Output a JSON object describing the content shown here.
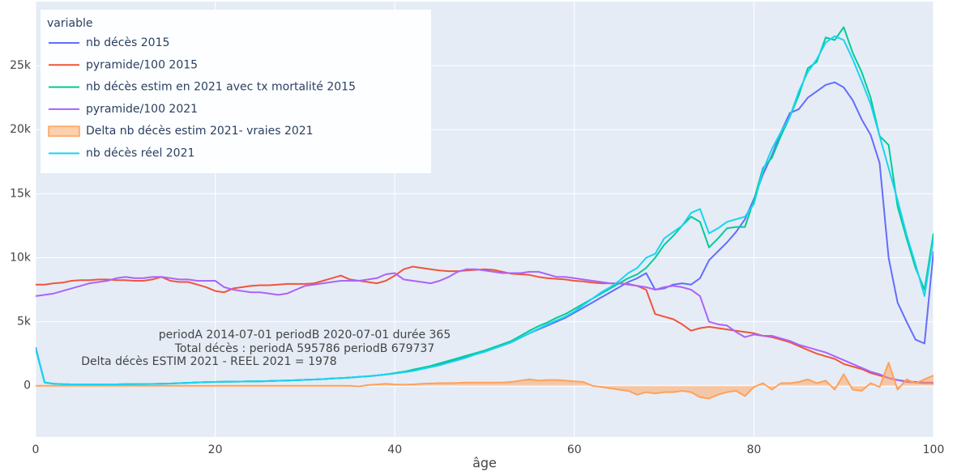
{
  "chart_data": {
    "type": "line",
    "x": [
      0,
      1,
      2,
      3,
      4,
      5,
      6,
      7,
      8,
      9,
      10,
      11,
      12,
      13,
      14,
      15,
      16,
      17,
      18,
      19,
      20,
      21,
      22,
      23,
      24,
      25,
      26,
      27,
      28,
      29,
      30,
      31,
      32,
      33,
      34,
      35,
      36,
      37,
      38,
      39,
      40,
      41,
      42,
      43,
      44,
      45,
      46,
      47,
      48,
      49,
      50,
      51,
      52,
      53,
      54,
      55,
      56,
      57,
      58,
      59,
      60,
      61,
      62,
      63,
      64,
      65,
      66,
      67,
      68,
      69,
      70,
      71,
      72,
      73,
      74,
      75,
      76,
      77,
      78,
      79,
      80,
      81,
      82,
      83,
      84,
      85,
      86,
      87,
      88,
      89,
      90,
      91,
      92,
      93,
      94,
      95,
      96,
      97,
      98,
      99,
      100
    ],
    "xlabel": "âge",
    "legend_title": "variable",
    "xlim": [
      0,
      100
    ],
    "xticks": [
      0,
      20,
      40,
      60,
      80,
      100
    ],
    "ylim": [
      -4000,
      30000
    ],
    "yticks": [
      0,
      {
        "value": 5000,
        "label": "5k"
      },
      {
        "value": 10000,
        "label": "10k"
      },
      {
        "value": 15000,
        "label": "15k"
      },
      {
        "value": 20000,
        "label": "20k"
      },
      {
        "value": 25000,
        "label": "25k"
      }
    ],
    "grid": true,
    "legend": "upper left",
    "annotations": [
      "periodA 2014-07-01 periodB 2020-07-01 durée 365",
      "Total décès : periodA 595786 periodB 679737",
      "Delta décès ESTIM 2021 - REEL 2021 = 1978"
    ],
    "series": [
      {
        "name": "nb décès 2015",
        "color": "#636efa",
        "values": [
          3000,
          250,
          150,
          120,
          110,
          100,
          100,
          100,
          110,
          110,
          120,
          120,
          130,
          140,
          150,
          170,
          200,
          230,
          260,
          280,
          300,
          310,
          320,
          330,
          340,
          350,
          370,
          390,
          410,
          430,
          460,
          490,
          520,
          560,
          600,
          640,
          690,
          740,
          800,
          880,
          970,
          1080,
          1200,
          1350,
          1500,
          1650,
          1850,
          2050,
          2250,
          2450,
          2650,
          2900,
          3150,
          3400,
          3750,
          4100,
          4400,
          4700,
          5000,
          5300,
          5700,
          6100,
          6500,
          6900,
          7300,
          7700,
          8100,
          8400,
          8800,
          7500,
          7600,
          7900,
          8000,
          7900,
          8400,
          9800,
          10500,
          11200,
          12000,
          13000,
          14600,
          16500,
          18000,
          19800,
          21300,
          21600,
          22500,
          23000,
          23500,
          23700,
          23300,
          22300,
          20800,
          19600,
          17400,
          10000,
          6500,
          5000,
          3600,
          3300,
          10500
        ]
      },
      {
        "name": "pyramide/100 2015",
        "color": "#ef553b",
        "values": [
          7900,
          7900,
          8000,
          8050,
          8200,
          8250,
          8250,
          8300,
          8300,
          8250,
          8250,
          8200,
          8200,
          8300,
          8500,
          8200,
          8100,
          8100,
          7900,
          7700,
          7400,
          7300,
          7600,
          7700,
          7800,
          7850,
          7850,
          7900,
          7950,
          7950,
          7950,
          8000,
          8200,
          8400,
          8600,
          8300,
          8200,
          8100,
          8000,
          8200,
          8600,
          9100,
          9300,
          9200,
          9100,
          9000,
          8950,
          8950,
          9000,
          9050,
          9100,
          9050,
          8900,
          8750,
          8700,
          8650,
          8500,
          8400,
          8350,
          8300,
          8200,
          8150,
          8050,
          8000,
          8000,
          8000,
          7950,
          7800,
          7500,
          5600,
          5400,
          5200,
          4800,
          4300,
          4500,
          4600,
          4500,
          4400,
          4300,
          4200,
          4100,
          3900,
          3800,
          3600,
          3400,
          3100,
          2800,
          2500,
          2300,
          2100,
          1700,
          1500,
          1300,
          1000,
          800,
          600,
          450,
          350,
          300,
          250,
          250
        ]
      },
      {
        "name": "nb décès estim en 2021 avec tx mortalité 2015",
        "color": "#00cc96",
        "values": [
          2900,
          260,
          150,
          120,
          110,
          100,
          100,
          100,
          110,
          110,
          120,
          120,
          130,
          140,
          150,
          170,
          200,
          230,
          260,
          280,
          300,
          310,
          320,
          330,
          340,
          350,
          370,
          390,
          410,
          430,
          460,
          490,
          520,
          560,
          600,
          640,
          690,
          740,
          800,
          880,
          990,
          1100,
          1250,
          1400,
          1550,
          1750,
          1950,
          2150,
          2350,
          2550,
          2750,
          3000,
          3250,
          3500,
          3900,
          4300,
          4650,
          4950,
          5300,
          5600,
          6000,
          6400,
          6800,
          7200,
          7600,
          8000,
          8400,
          8700,
          9200,
          10000,
          11000,
          11700,
          12500,
          13200,
          12800,
          10800,
          11500,
          12300,
          12400,
          12400,
          14500,
          17000,
          17800,
          19500,
          21000,
          22700,
          24800,
          25300,
          27200,
          27000,
          28000,
          26000,
          24500,
          22500,
          19500,
          18800,
          14000,
          11500,
          9200,
          7500,
          11900
        ]
      },
      {
        "name": "pyramide/100 2021",
        "color": "#ab63fa",
        "values": [
          7000,
          7100,
          7200,
          7400,
          7600,
          7800,
          8000,
          8100,
          8200,
          8400,
          8500,
          8400,
          8400,
          8500,
          8500,
          8400,
          8300,
          8300,
          8200,
          8200,
          8200,
          7700,
          7500,
          7400,
          7300,
          7300,
          7200,
          7100,
          7200,
          7500,
          7800,
          7900,
          8000,
          8100,
          8200,
          8200,
          8200,
          8300,
          8400,
          8700,
          8800,
          8300,
          8200,
          8100,
          8000,
          8200,
          8500,
          8900,
          9100,
          9100,
          9000,
          8900,
          8800,
          8800,
          8800,
          8900,
          8900,
          8700,
          8500,
          8500,
          8400,
          8300,
          8200,
          8100,
          8000,
          8000,
          7900,
          7800,
          7700,
          7500,
          7700,
          7800,
          7700,
          7500,
          7000,
          5000,
          4800,
          4700,
          4200,
          3800,
          4000,
          3900,
          3900,
          3700,
          3500,
          3200,
          3000,
          2800,
          2600,
          2300,
          2000,
          1700,
          1400,
          1100,
          900,
          600,
          450,
          300,
          250,
          200,
          200
        ]
      },
      {
        "name": "Delta nb décès estim 2021- vraies 2021",
        "color": "#FFA15A",
        "fill": "tozeroy",
        "values": [
          0,
          0,
          0,
          0,
          0,
          0,
          0,
          0,
          0,
          0,
          0,
          0,
          0,
          0,
          0,
          0,
          0,
          0,
          0,
          0,
          0,
          0,
          0,
          0,
          0,
          0,
          0,
          0,
          0,
          0,
          0,
          0,
          0,
          0,
          0,
          0,
          -50,
          50,
          100,
          150,
          100,
          80,
          100,
          150,
          180,
          200,
          200,
          220,
          250,
          250,
          250,
          250,
          250,
          300,
          400,
          500,
          400,
          450,
          450,
          400,
          350,
          300,
          0,
          -100,
          -200,
          -300,
          -400,
          -700,
          -500,
          -600,
          -500,
          -500,
          -400,
          -500,
          -900,
          -1000,
          -700,
          -500,
          -400,
          -800,
          -100,
          200,
          -300,
          200,
          200,
          300,
          500,
          200,
          400,
          -300,
          900,
          -300,
          -400,
          200,
          -100,
          1800,
          -300,
          500,
          200,
          500,
          800
        ]
      },
      {
        "name": "nb décès réel 2021",
        "color": "#19d3f3",
        "values": [
          2900,
          250,
          150,
          120,
          110,
          100,
          100,
          100,
          110,
          110,
          120,
          120,
          130,
          140,
          150,
          170,
          200,
          230,
          260,
          280,
          300,
          310,
          320,
          330,
          340,
          350,
          370,
          390,
          410,
          430,
          460,
          490,
          520,
          560,
          600,
          640,
          690,
          740,
          800,
          880,
          960,
          1050,
          1150,
          1300,
          1450,
          1600,
          1800,
          2000,
          2200,
          2450,
          2650,
          2900,
          3150,
          3400,
          3750,
          4100,
          4450,
          4800,
          5100,
          5400,
          5800,
          6300,
          6800,
          7300,
          7700,
          8200,
          8800,
          9200,
          10000,
          10300,
          11500,
          12000,
          12500,
          13500,
          13800,
          11900,
          12300,
          12800,
          13000,
          13200,
          14200,
          16800,
          18500,
          19800,
          21000,
          23000,
          24500,
          25500,
          26800,
          27300,
          27000,
          25500,
          23800,
          22000,
          19500,
          17000,
          14500,
          11800,
          9500,
          7000,
          11500
        ]
      }
    ]
  }
}
